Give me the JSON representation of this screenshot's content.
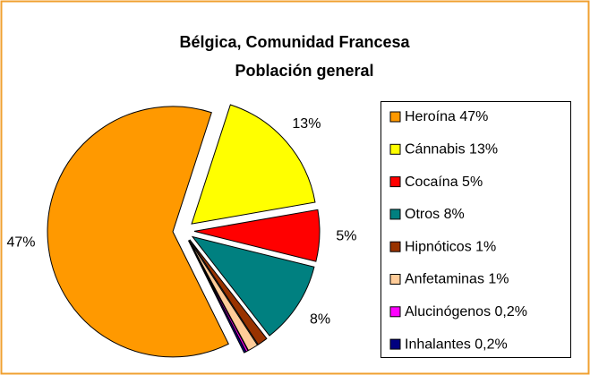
{
  "chart_data": {
    "type": "pie",
    "title": "Bélgica, Comunidad Francesa",
    "subtitle": "Población general",
    "categories": [
      "Heroína 47%",
      "Cánnabis 13%",
      "Cocaína 5%",
      "Otros 8%",
      "Hipnóticos 1%",
      "Anfetaminas 1%",
      "Alucinógenos 0,2%",
      "Inhalantes 0,2%"
    ],
    "values": [
      47,
      13,
      5,
      8,
      1,
      1,
      0.2,
      0.2
    ],
    "value_labels": [
      "47%",
      "13%",
      "5%",
      "8%",
      null,
      null,
      null,
      null
    ],
    "colors": [
      "#ff9900",
      "#ffff00",
      "#ff0000",
      "#008080",
      "#993300",
      "#ffcc99",
      "#ff00ff",
      "#000080"
    ],
    "legend": "right"
  }
}
